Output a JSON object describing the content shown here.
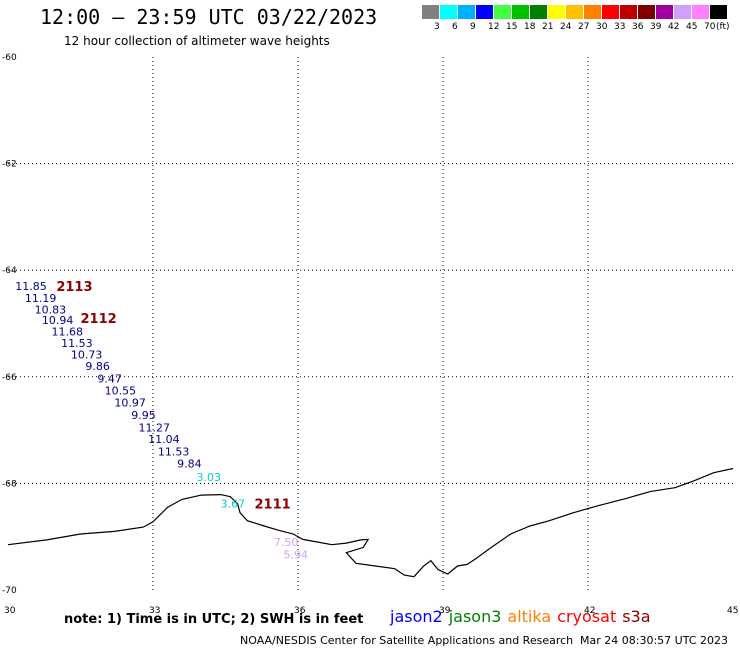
{
  "title": "12:00 – 23:59 UTC 03/22/2023",
  "subtitle": "12 hour collection of altimeter wave heights",
  "scale": {
    "colors": [
      "#808080",
      "#00ffff",
      "#00b0ff",
      "#0000ff",
      "#40ff40",
      "#00c000",
      "#008000",
      "#ffff00",
      "#ffc000",
      "#ff8000",
      "#ff0000",
      "#c00000",
      "#800000",
      "#a000a0",
      "#d0a0ff",
      "#ff80ff",
      "#000000"
    ],
    "labels": [
      "3",
      "6",
      "9",
      "12",
      "15",
      "18",
      "21",
      "24",
      "27",
      "30",
      "33",
      "36",
      "39",
      "42",
      "45",
      "70"
    ],
    "unit": "(ft)"
  },
  "axes": {
    "lon_min": 30,
    "lon_max": 45,
    "lat_min": -70,
    "lat_max": -60,
    "x_ticks": [
      {
        "v": 30,
        "label": "30"
      },
      {
        "v": 33,
        "label": "33"
      },
      {
        "v": 36,
        "label": "36"
      },
      {
        "v": 39,
        "label": "39"
      },
      {
        "v": 42,
        "label": "42"
      },
      {
        "v": 45,
        "label": "45"
      }
    ],
    "y_ticks": [
      {
        "v": -60,
        "label": "-60"
      },
      {
        "v": -62,
        "label": "-62"
      },
      {
        "v": -64,
        "label": "-64"
      },
      {
        "v": -66,
        "label": "-66"
      },
      {
        "v": -68,
        "label": "-68"
      },
      {
        "v": -70,
        "label": "-70"
      }
    ]
  },
  "wave_heights": [
    {
      "lon": 30.15,
      "lat": -64.3,
      "text": "11.85",
      "color": "#00008b"
    },
    {
      "lon": 30.35,
      "lat": -64.52,
      "text": "11.19",
      "color": "#00008b"
    },
    {
      "lon": 30.55,
      "lat": -64.74,
      "text": "10.83",
      "color": "#00008b"
    },
    {
      "lon": 30.7,
      "lat": -64.93,
      "text": "10.94",
      "color": "#00008b"
    },
    {
      "lon": 30.9,
      "lat": -65.15,
      "text": "11.68",
      "color": "#00008b"
    },
    {
      "lon": 31.1,
      "lat": -65.37,
      "text": "11.53",
      "color": "#00008b"
    },
    {
      "lon": 31.3,
      "lat": -65.58,
      "text": "10.73",
      "color": "#00008b"
    },
    {
      "lon": 31.6,
      "lat": -65.8,
      "text": "9.86",
      "color": "#00008b"
    },
    {
      "lon": 31.85,
      "lat": -66.03,
      "text": "9.47",
      "color": "#00008b"
    },
    {
      "lon": 32.0,
      "lat": -66.26,
      "text": "10.55",
      "color": "#00008b"
    },
    {
      "lon": 32.2,
      "lat": -66.48,
      "text": "10.97",
      "color": "#00008b"
    },
    {
      "lon": 32.55,
      "lat": -66.72,
      "text": "9.95",
      "color": "#00008b"
    },
    {
      "lon": 32.7,
      "lat": -66.95,
      "text": "11.27",
      "color": "#00008b"
    },
    {
      "lon": 32.9,
      "lat": -67.17,
      "text": "11.04",
      "color": "#00008b"
    },
    {
      "lon": 33.1,
      "lat": -67.4,
      "text": "11.53",
      "color": "#00008b"
    },
    {
      "lon": 33.5,
      "lat": -67.63,
      "text": "9.84",
      "color": "#00008b"
    },
    {
      "lon": 33.9,
      "lat": -67.88,
      "text": "3.03",
      "color": "#00d0d0"
    },
    {
      "lon": 34.4,
      "lat": -68.38,
      "text": "3.67",
      "color": "#00d0d0"
    },
    {
      "lon": 35.5,
      "lat": -69.1,
      "text": "7.50",
      "color": "#d0a0ff"
    },
    {
      "lon": 35.7,
      "lat": -69.33,
      "text": "5.94",
      "color": "#d0a0ff"
    }
  ],
  "pass_ids": [
    {
      "lon": 31.0,
      "lat": -64.3,
      "text": "2113"
    },
    {
      "lon": 31.5,
      "lat": -64.9,
      "text": "2112"
    },
    {
      "lon": 35.1,
      "lat": -68.38,
      "text": "2111"
    }
  ],
  "coastline": [
    [
      30.0,
      -69.15
    ],
    [
      30.8,
      -69.06
    ],
    [
      31.5,
      -68.95
    ],
    [
      32.2,
      -68.9
    ],
    [
      32.8,
      -68.82
    ],
    [
      33.0,
      -68.72
    ],
    [
      33.3,
      -68.45
    ],
    [
      33.6,
      -68.3
    ],
    [
      34.0,
      -68.22
    ],
    [
      34.4,
      -68.21
    ],
    [
      34.6,
      -68.25
    ],
    [
      34.75,
      -68.38
    ],
    [
      34.8,
      -68.55
    ],
    [
      34.95,
      -68.7
    ],
    [
      35.3,
      -68.8
    ],
    [
      35.6,
      -68.88
    ],
    [
      35.9,
      -68.95
    ],
    [
      36.1,
      -69.05
    ],
    [
      36.4,
      -69.1
    ],
    [
      36.7,
      -69.15
    ],
    [
      37.0,
      -69.12
    ],
    [
      37.3,
      -69.06
    ],
    [
      37.45,
      -69.05
    ],
    [
      37.35,
      -69.2
    ],
    [
      37.0,
      -69.3
    ],
    [
      37.2,
      -69.5
    ],
    [
      37.6,
      -69.55
    ],
    [
      38.0,
      -69.6
    ],
    [
      38.2,
      -69.72
    ],
    [
      38.4,
      -69.75
    ],
    [
      38.6,
      -69.55
    ],
    [
      38.75,
      -69.45
    ],
    [
      38.9,
      -69.62
    ],
    [
      39.1,
      -69.7
    ],
    [
      39.3,
      -69.55
    ],
    [
      39.5,
      -69.52
    ],
    [
      39.7,
      -69.4
    ],
    [
      40.0,
      -69.2
    ],
    [
      40.4,
      -68.95
    ],
    [
      40.8,
      -68.8
    ],
    [
      41.2,
      -68.7
    ],
    [
      41.7,
      -68.55
    ],
    [
      42.2,
      -68.42
    ],
    [
      42.8,
      -68.28
    ],
    [
      43.3,
      -68.15
    ],
    [
      43.8,
      -68.08
    ],
    [
      44.2,
      -67.95
    ],
    [
      44.6,
      -67.8
    ],
    [
      45.0,
      -67.72
    ]
  ],
  "note": "note: 1) Time is in UTC; 2) SWH is in feet",
  "legend": [
    {
      "name": "jason2",
      "color": "#0000ff"
    },
    {
      "name": "jason3",
      "color": "#008000"
    },
    {
      "name": "altika",
      "color": "#ff8000"
    },
    {
      "name": "cryosat",
      "color": "#ff0000"
    },
    {
      "name": "s3a",
      "color": "#8b0000"
    }
  ],
  "credit": "NOAA/NESDIS Center for Satellite Applications and Research",
  "timestamp": "Mar 24 08:30:57 UTC 2023"
}
